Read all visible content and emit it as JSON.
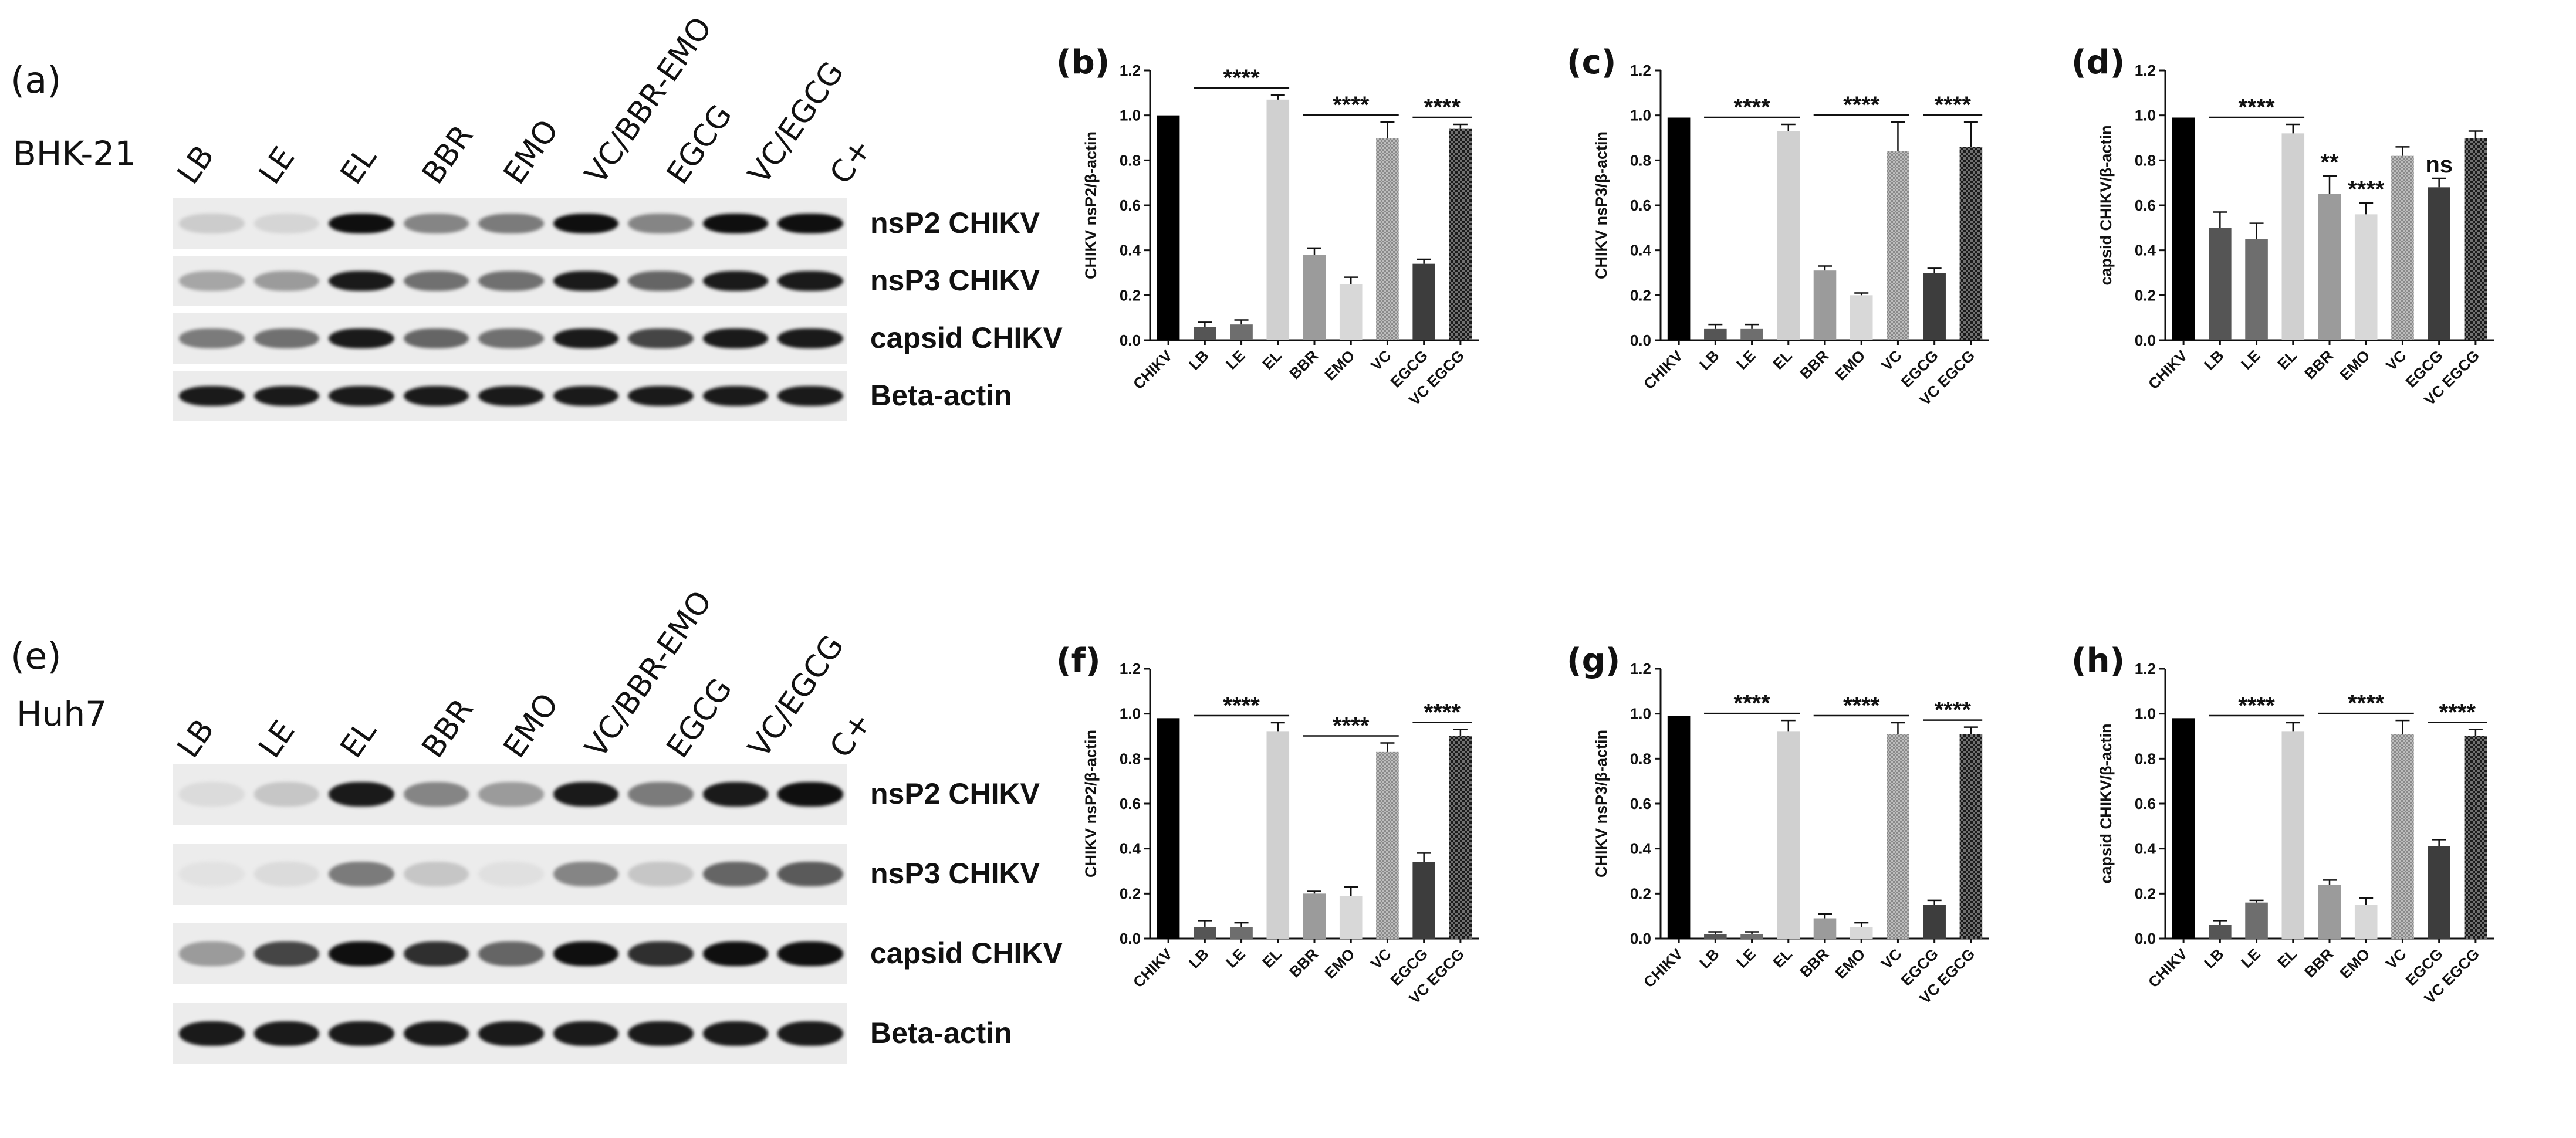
{
  "blots": [
    {
      "panel": "(a)",
      "cell_line": "BHK-21",
      "lanes": [
        "LB",
        "LE",
        "EL",
        "BBR",
        "EMO",
        "VC/BBR-EMO",
        "EGCG",
        "VC/EGCG",
        "C+"
      ],
      "proteins": [
        {
          "name": "nsP2 CHIKV",
          "intensities": [
            0.12,
            0.08,
            1.0,
            0.45,
            0.5,
            1.0,
            0.45,
            1.0,
            1.0
          ]
        },
        {
          "name": "nsP3 CHIKV",
          "intensities": [
            0.3,
            0.35,
            0.95,
            0.55,
            0.55,
            0.95,
            0.6,
            0.95,
            0.95
          ]
        },
        {
          "name": "capsid CHIKV",
          "intensities": [
            0.5,
            0.55,
            0.95,
            0.6,
            0.55,
            0.95,
            0.75,
            0.95,
            0.95
          ]
        },
        {
          "name": "Beta-actin",
          "intensities": [
            0.95,
            0.95,
            0.95,
            0.95,
            0.95,
            0.95,
            0.95,
            0.95,
            0.95
          ]
        }
      ]
    },
    {
      "panel": "(e)",
      "cell_line": "Huh7",
      "lanes": [
        "LB",
        "LE",
        "EL",
        "BBR",
        "EMO",
        "VC/BBR-EMO",
        "EGCG",
        "VC/EGCG",
        "C+"
      ],
      "proteins": [
        {
          "name": "nsP2 CHIKV",
          "intensities": [
            0.05,
            0.15,
            0.95,
            0.45,
            0.35,
            0.95,
            0.5,
            0.95,
            1.0
          ]
        },
        {
          "name": "nsP3 CHIKV",
          "intensities": [
            0.02,
            0.05,
            0.5,
            0.15,
            0.03,
            0.45,
            0.15,
            0.6,
            0.65
          ]
        },
        {
          "name": "capsid CHIKV",
          "intensities": [
            0.35,
            0.75,
            1.0,
            0.85,
            0.6,
            1.0,
            0.85,
            1.0,
            1.0
          ]
        },
        {
          "name": "Beta-actin",
          "intensities": [
            0.95,
            0.95,
            0.95,
            0.95,
            0.95,
            0.95,
            0.95,
            0.95,
            0.95
          ]
        }
      ]
    }
  ],
  "chart_data": [
    {
      "panel": "(b)",
      "type": "bar",
      "ylabel": "CHIKV nsP2/β-actin",
      "ylim": [
        0,
        1.2
      ],
      "yticks": [
        "0.0",
        "0.2",
        "0.4",
        "0.6",
        "0.8",
        "1.0",
        "1.2"
      ],
      "categories": [
        "CHIKV",
        "LB",
        "LE",
        "EL",
        "BBR",
        "EMO",
        "VC",
        "EGCG",
        "VC EGCG"
      ],
      "values": [
        1.0,
        0.06,
        0.07,
        1.07,
        0.38,
        0.25,
        0.9,
        0.34,
        0.94
      ],
      "errors": [
        0,
        0.02,
        0.02,
        0.02,
        0.03,
        0.03,
        0.07,
        0.02,
        0.02
      ],
      "significance": [
        {
          "label": "****",
          "from": 1,
          "to": 3
        },
        {
          "label": "****",
          "from": 4,
          "to": 6
        },
        {
          "label": "****",
          "from": 7,
          "to": 8
        }
      ]
    },
    {
      "panel": "(c)",
      "type": "bar",
      "ylabel": "CHIKV nsP3/β-actin",
      "ylim": [
        0,
        1.2
      ],
      "yticks": [
        "0.0",
        "0.2",
        "0.4",
        "0.6",
        "0.8",
        "1.0",
        "1.2"
      ],
      "categories": [
        "CHIKV",
        "LB",
        "LE",
        "EL",
        "BBR",
        "EMO",
        "VC",
        "EGCG",
        "VC EGCG"
      ],
      "values": [
        0.99,
        0.05,
        0.05,
        0.93,
        0.31,
        0.2,
        0.84,
        0.3,
        0.86
      ],
      "errors": [
        0,
        0.02,
        0.02,
        0.03,
        0.02,
        0.01,
        0.13,
        0.02,
        0.11
      ],
      "significance": [
        {
          "label": "****",
          "from": 1,
          "to": 3
        },
        {
          "label": "****",
          "from": 4,
          "to": 6
        },
        {
          "label": "****",
          "from": 7,
          "to": 8
        }
      ]
    },
    {
      "panel": "(d)",
      "type": "bar",
      "ylabel": "capsid CHIKV/β-actin",
      "ylim": [
        0,
        1.2
      ],
      "yticks": [
        "0.0",
        "0.2",
        "0.4",
        "0.6",
        "0.8",
        "1.0",
        "1.2"
      ],
      "categories": [
        "CHIKV",
        "LB",
        "LE",
        "EL",
        "BBR",
        "EMO",
        "VC",
        "EGCG",
        "VC EGCG"
      ],
      "values": [
        0.99,
        0.5,
        0.45,
        0.92,
        0.65,
        0.56,
        0.82,
        0.68,
        0.9
      ],
      "errors": [
        0,
        0.07,
        0.07,
        0.04,
        0.08,
        0.05,
        0.04,
        0.04,
        0.03
      ],
      "significance": [
        {
          "label": "****",
          "from": 1,
          "to": 3
        },
        {
          "label": "**",
          "at": 4
        },
        {
          "label": "****",
          "at": 5
        },
        {
          "label": "ns",
          "at": 7
        }
      ]
    },
    {
      "panel": "(f)",
      "type": "bar",
      "ylabel": "CHIKV nsP2/β-actin",
      "ylim": [
        0,
        1.2
      ],
      "yticks": [
        "0.0",
        "0.2",
        "0.4",
        "0.6",
        "0.8",
        "1.0",
        "1.2"
      ],
      "categories": [
        "CHIKV",
        "LB",
        "LE",
        "EL",
        "BBR",
        "EMO",
        "VC",
        "EGCG",
        "VC EGCG"
      ],
      "values": [
        0.98,
        0.05,
        0.05,
        0.92,
        0.2,
        0.19,
        0.83,
        0.34,
        0.9
      ],
      "errors": [
        0,
        0.03,
        0.02,
        0.04,
        0.01,
        0.04,
        0.04,
        0.04,
        0.03
      ],
      "significance": [
        {
          "label": "****",
          "from": 1,
          "to": 3
        },
        {
          "label": "****",
          "from": 4,
          "to": 6
        },
        {
          "label": "****",
          "from": 7,
          "to": 8
        }
      ]
    },
    {
      "panel": "(g)",
      "type": "bar",
      "ylabel": "CHIKV nsP3/β-actin",
      "ylim": [
        0,
        1.2
      ],
      "yticks": [
        "0.0",
        "0.2",
        "0.4",
        "0.6",
        "0.8",
        "1.0",
        "1.2"
      ],
      "categories": [
        "CHIKV",
        "LB",
        "LE",
        "EL",
        "BBR",
        "EMO",
        "VC",
        "EGCG",
        "VC EGCG"
      ],
      "values": [
        0.99,
        0.02,
        0.02,
        0.92,
        0.09,
        0.05,
        0.91,
        0.15,
        0.91
      ],
      "errors": [
        0,
        0.01,
        0.01,
        0.05,
        0.02,
        0.02,
        0.05,
        0.02,
        0.03
      ],
      "significance": [
        {
          "label": "****",
          "from": 1,
          "to": 3
        },
        {
          "label": "****",
          "from": 4,
          "to": 6
        },
        {
          "label": "****",
          "from": 7,
          "to": 8
        }
      ]
    },
    {
      "panel": "(h)",
      "type": "bar",
      "ylabel": "capsid CHIKV/β-actin",
      "ylim": [
        0,
        1.2
      ],
      "yticks": [
        "0.0",
        "0.2",
        "0.4",
        "0.6",
        "0.8",
        "1.0",
        "1.2"
      ],
      "categories": [
        "CHIKV",
        "LB",
        "LE",
        "EL",
        "BBR",
        "EMO",
        "VC",
        "EGCG",
        "VC EGCG"
      ],
      "values": [
        0.98,
        0.06,
        0.16,
        0.92,
        0.24,
        0.15,
        0.91,
        0.41,
        0.9
      ],
      "errors": [
        0,
        0.02,
        0.01,
        0.04,
        0.02,
        0.03,
        0.06,
        0.03,
        0.03
      ],
      "significance": [
        {
          "label": "****",
          "from": 1,
          "to": 3
        },
        {
          "label": "****",
          "from": 4,
          "to": 6
        },
        {
          "label": "****",
          "from": 7,
          "to": 8
        }
      ]
    }
  ]
}
